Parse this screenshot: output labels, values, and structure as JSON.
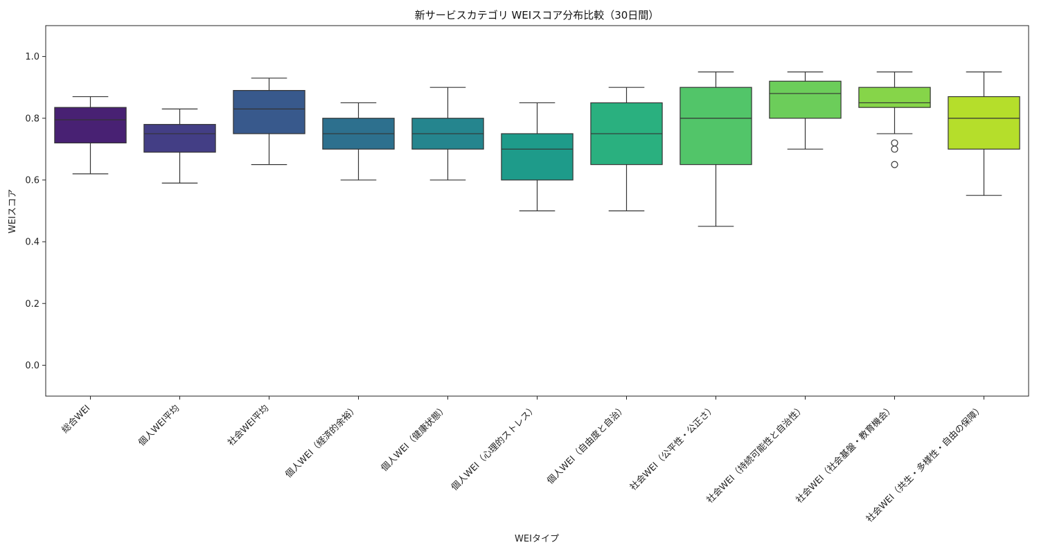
{
  "chart_data": {
    "type": "box",
    "title": "新サービスカテゴリ WEIスコア分布比較（30日間）",
    "xlabel": "WEIタイプ",
    "ylabel": "WEIスコア",
    "ylim": [
      -0.1,
      1.1
    ],
    "yticks": [
      "0.0",
      "0.2",
      "0.4",
      "0.6",
      "0.8",
      "1.0"
    ],
    "grid": false,
    "legend": "none",
    "categories": [
      "総合WEI",
      "個人WEI平均",
      "社会WEI平均",
      "個人WEI（経済的余裕）",
      "個人WEI（健康状態）",
      "個人WEI（心理的ストレス）",
      "個人WEI（自由度と自治）",
      "社会WEI（公平性・公正さ）",
      "社会WEI（持続可能性と自治性）",
      "社会WEI（社会基盤・教育機会）",
      "社会WEI（共生・多様性・自由の保障）"
    ],
    "boxes": [
      {
        "whisker_low": 0.62,
        "q1": 0.72,
        "median": 0.795,
        "q3": 0.835,
        "whisker_high": 0.87,
        "outliers": []
      },
      {
        "whisker_low": 0.59,
        "q1": 0.69,
        "median": 0.75,
        "q3": 0.78,
        "whisker_high": 0.83,
        "outliers": []
      },
      {
        "whisker_low": 0.65,
        "q1": 0.75,
        "median": 0.83,
        "q3": 0.89,
        "whisker_high": 0.93,
        "outliers": []
      },
      {
        "whisker_low": 0.6,
        "q1": 0.7,
        "median": 0.75,
        "q3": 0.8,
        "whisker_high": 0.85,
        "outliers": []
      },
      {
        "whisker_low": 0.6,
        "q1": 0.7,
        "median": 0.75,
        "q3": 0.8,
        "whisker_high": 0.9,
        "outliers": []
      },
      {
        "whisker_low": 0.5,
        "q1": 0.6,
        "median": 0.7,
        "q3": 0.75,
        "whisker_high": 0.85,
        "outliers": []
      },
      {
        "whisker_low": 0.5,
        "q1": 0.65,
        "median": 0.75,
        "q3": 0.85,
        "whisker_high": 0.9,
        "outliers": []
      },
      {
        "whisker_low": 0.45,
        "q1": 0.65,
        "median": 0.8,
        "q3": 0.9,
        "whisker_high": 0.95,
        "outliers": []
      },
      {
        "whisker_low": 0.7,
        "q1": 0.8,
        "median": 0.88,
        "q3": 0.92,
        "whisker_high": 0.95,
        "outliers": []
      },
      {
        "whisker_low": 0.75,
        "q1": 0.835,
        "median": 0.85,
        "q3": 0.9,
        "whisker_high": 0.95,
        "outliers": [
          0.72,
          0.7,
          0.65
        ]
      },
      {
        "whisker_low": 0.55,
        "q1": 0.7,
        "median": 0.8,
        "q3": 0.87,
        "whisker_high": 0.95,
        "outliers": []
      }
    ],
    "colors": [
      "#482173",
      "#433e85",
      "#38598c",
      "#2d708e",
      "#25858e",
      "#1e9b8a",
      "#2ab07f",
      "#52c569",
      "#6ccd5a",
      "#86d549",
      "#b5de2b"
    ]
  }
}
